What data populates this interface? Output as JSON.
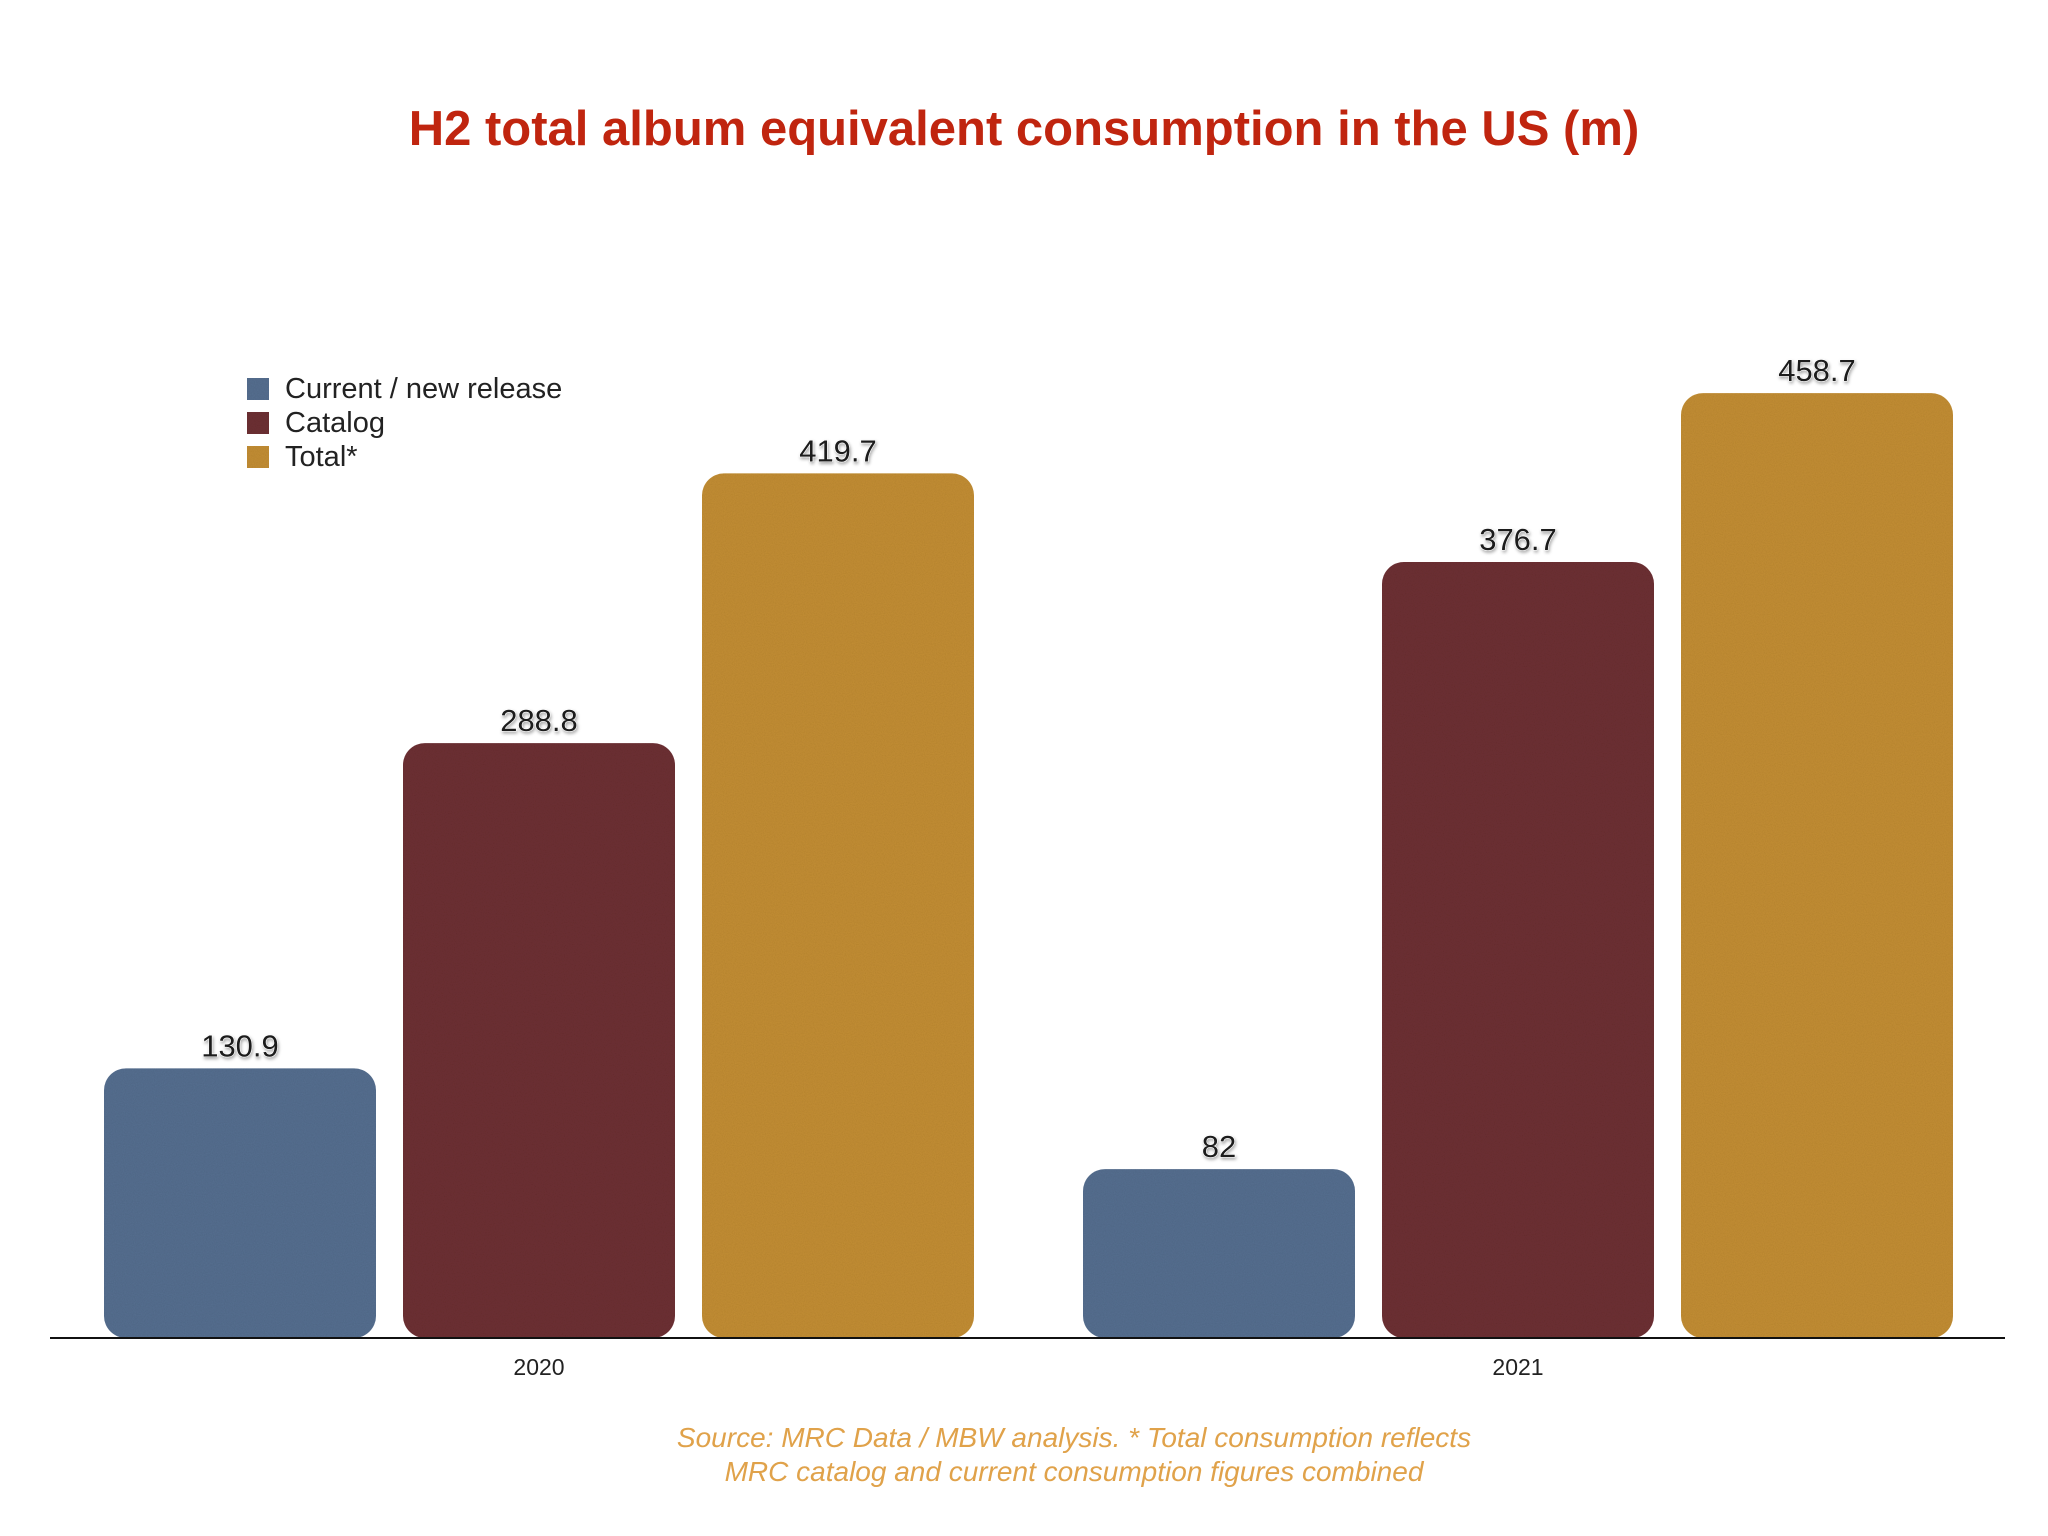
{
  "chart_data": {
    "type": "bar",
    "title": "H2 total album equivalent consumption in the US (m)",
    "categories": [
      "2020",
      "2021"
    ],
    "series": [
      {
        "name": "Current / new release",
        "values": [
          130.9,
          82
        ],
        "color": "#566f91"
      },
      {
        "name": "Catalog",
        "values": [
          288.8,
          376.7
        ],
        "color": "#6e3036"
      },
      {
        "name": "Total*",
        "values": [
          419.7,
          458.7
        ],
        "color": "#c48f34"
      }
    ],
    "value_labels": [
      [
        "130.9",
        "82"
      ],
      [
        "288.8",
        "376.7"
      ],
      [
        "419.7",
        "458.7"
      ]
    ],
    "ylim": [
      0,
      500
    ],
    "grid": false,
    "legend_position": "top-left",
    "xlabel": "",
    "ylabel": "",
    "source_note": [
      "Source: MRC Data / MBW analysis. * Total consumption reflects",
      "MRC catalog and current consumption figures combined"
    ]
  }
}
